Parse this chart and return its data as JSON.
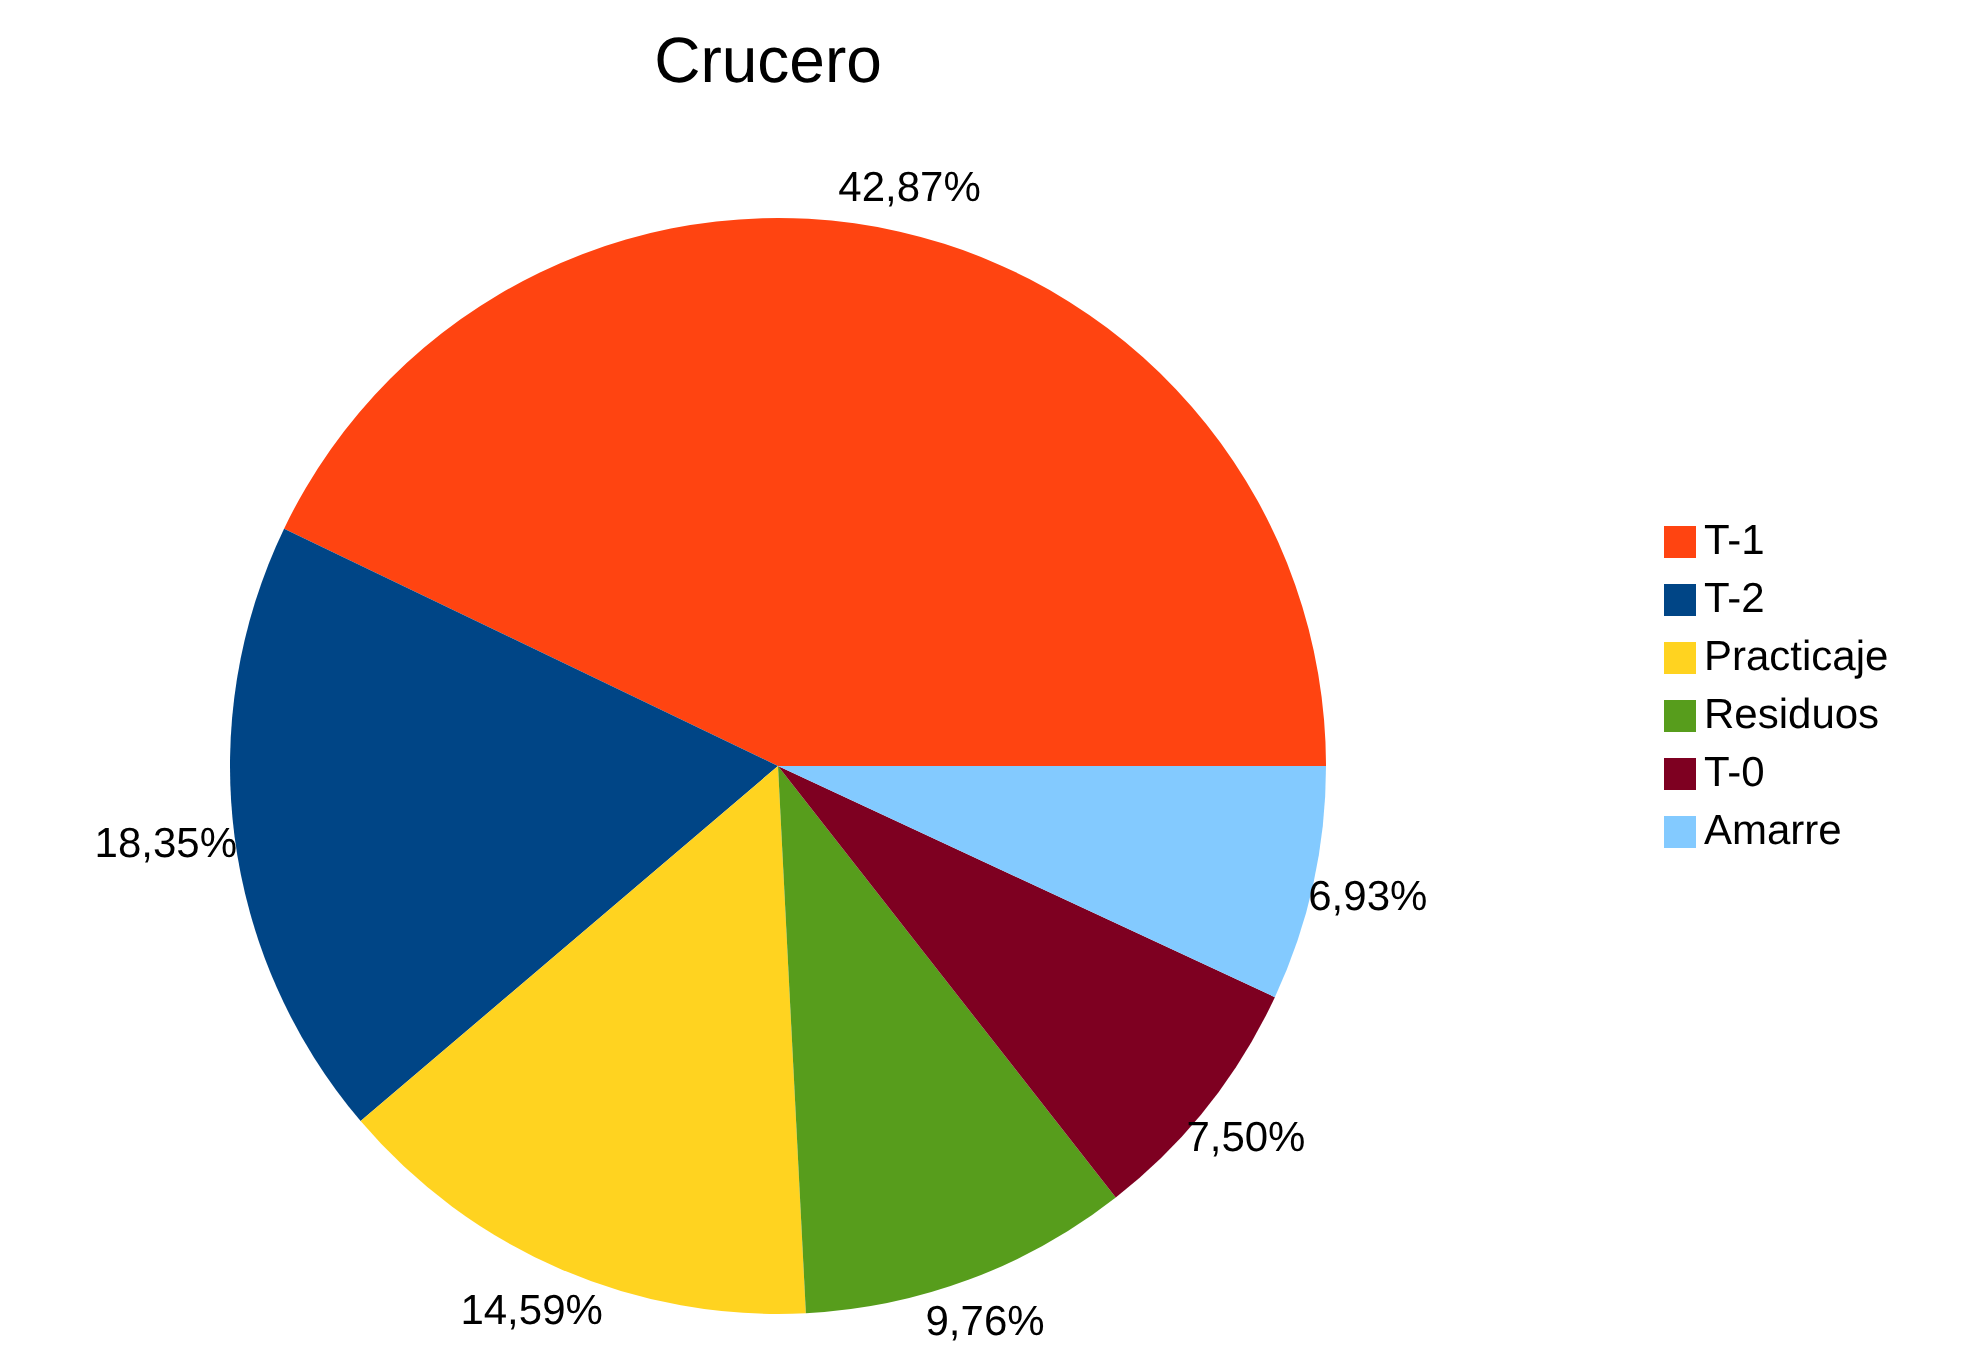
{
  "chart_data": {
    "type": "pie",
    "title": "Crucero",
    "categories": [
      "T-1",
      "T-2",
      "Practicaje",
      "Residuos",
      "T-0",
      "Amarre"
    ],
    "values": [
      42.87,
      18.35,
      14.59,
      9.76,
      7.5,
      6.93
    ],
    "value_labels": [
      "42,87%",
      "18,35%",
      "14,59%",
      "9,76%",
      "7,50%",
      "6,93%"
    ],
    "colors": [
      "#ff4411",
      "#004586",
      "#ffd320",
      "#579d1c",
      "#7e0021",
      "#83caff"
    ],
    "legend": "right"
  }
}
